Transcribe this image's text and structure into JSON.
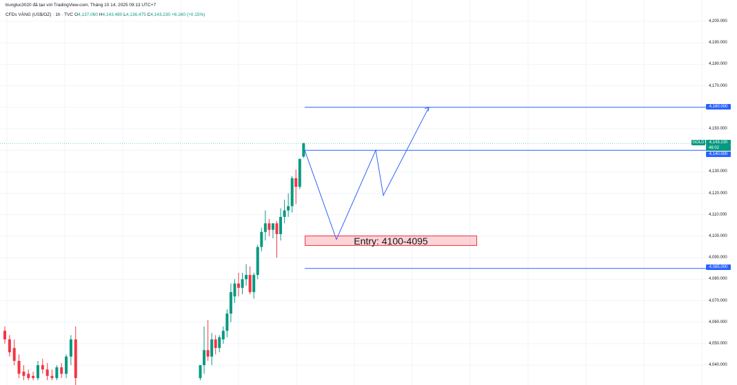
{
  "header": {
    "credit": "trungluc3020 đã tạo với TradingView.com, Tháng 10 14, 2025 09:13 UTC+7",
    "symbol_desc": "CFDs VÀNG (US$/OZ) · 1h · TVC",
    "ohlc": {
      "open_label": "O",
      "open": "4,137.060",
      "high_label": "H",
      "high": "4,143.480",
      "low_label": "L",
      "low": "4,136.475",
      "close_label": "C",
      "close": "4,143.230",
      "change": "+6.160 (+0.15%)"
    }
  },
  "price_axis": {
    "labels": [
      "4,200.000",
      "4,190.000",
      "4,180.000",
      "4,170.000",
      "4,150.000",
      "4,130.000",
      "4,120.000",
      "4,110.000",
      "4,100.000",
      "4,090.000",
      "4,080.000",
      "4,070.000",
      "4,060.000",
      "4,050.000",
      "4,040.000"
    ]
  },
  "tags": {
    "target": "4,160.000",
    "gold_label": "GOLD",
    "last_price": "4,143.230",
    "countdown": "46:02",
    "level": "4,140.000",
    "stop": "4,085.000"
  },
  "annotation": {
    "entry_text": "Entry: 4100-4095"
  },
  "colors": {
    "up": "#089981",
    "down": "#f23645",
    "drawing": "#2962ff"
  },
  "chart_data": {
    "type": "candlestick",
    "interval": "1h",
    "y_range": [
      4035,
      4205
    ],
    "horizontal_levels": [
      4160,
      4140,
      4085
    ],
    "entry_zone": [
      4095,
      4100
    ],
    "projected_path": [
      4140,
      4098.5,
      4140,
      4119,
      4160
    ],
    "candles_left": [
      {
        "o": 4056,
        "h": 4058,
        "l": 4050,
        "c": 4052
      },
      {
        "o": 4052,
        "h": 4054,
        "l": 4044,
        "c": 4046
      },
      {
        "o": 4048,
        "h": 4052,
        "l": 4040,
        "c": 4042
      },
      {
        "o": 4042,
        "h": 4045,
        "l": 4034,
        "c": 4036
      },
      {
        "o": 4037,
        "h": 4040,
        "l": 4033,
        "c": 4035
      },
      {
        "o": 4036,
        "h": 4038,
        "l": 4033,
        "c": 4034
      },
      {
        "o": 4035,
        "h": 4037,
        "l": 4033,
        "c": 4034
      },
      {
        "o": 4034,
        "h": 4042,
        "l": 4033,
        "c": 4040
      },
      {
        "o": 4040,
        "h": 4043,
        "l": 4036,
        "c": 4038
      },
      {
        "o": 4038,
        "h": 4041,
        "l": 4033,
        "c": 4035
      },
      {
        "o": 4035,
        "h": 4038,
        "l": 4033,
        "c": 4034
      },
      {
        "o": 4034,
        "h": 4040,
        "l": 4033,
        "c": 4039
      },
      {
        "o": 4039,
        "h": 4041,
        "l": 4034,
        "c": 4036
      },
      {
        "o": 4036,
        "h": 4045,
        "l": 4034,
        "c": 4044
      },
      {
        "o": 4044,
        "h": 4054,
        "l": 4040,
        "c": 4052
      },
      {
        "o": 4052,
        "h": 4058,
        "l": 4030,
        "c": 4034
      }
    ],
    "candles_right": [
      {
        "o": 4034,
        "h": 4040,
        "l": 4033,
        "c": 4040
      },
      {
        "o": 4040,
        "h": 4058,
        "l": 4036,
        "c": 4047
      },
      {
        "o": 4047,
        "h": 4061,
        "l": 4042,
        "c": 4044
      },
      {
        "o": 4044,
        "h": 4055,
        "l": 4040,
        "c": 4052
      },
      {
        "o": 4052,
        "h": 4054,
        "l": 4045,
        "c": 4048
      },
      {
        "o": 4048,
        "h": 4054,
        "l": 4046,
        "c": 4053
      },
      {
        "o": 4052,
        "h": 4058,
        "l": 4050,
        "c": 4056
      },
      {
        "o": 4056,
        "h": 4066,
        "l": 4053,
        "c": 4064
      },
      {
        "o": 4064,
        "h": 4078,
        "l": 4060,
        "c": 4074
      },
      {
        "o": 4072,
        "h": 4080,
        "l": 4069,
        "c": 4078
      },
      {
        "o": 4078,
        "h": 4083,
        "l": 4072,
        "c": 4076
      },
      {
        "o": 4076,
        "h": 4083,
        "l": 4073,
        "c": 4080
      },
      {
        "o": 4080,
        "h": 4087,
        "l": 4077,
        "c": 4082
      },
      {
        "o": 4082,
        "h": 4086,
        "l": 4073,
        "c": 4074
      },
      {
        "o": 4074,
        "h": 4083,
        "l": 4071,
        "c": 4082
      },
      {
        "o": 4082,
        "h": 4096,
        "l": 4080,
        "c": 4095
      },
      {
        "o": 4095,
        "h": 4104,
        "l": 4093,
        "c": 4102
      },
      {
        "o": 4102,
        "h": 4112,
        "l": 4098,
        "c": 4106
      },
      {
        "o": 4106,
        "h": 4108,
        "l": 4100,
        "c": 4103
      },
      {
        "o": 4103,
        "h": 4106,
        "l": 4099,
        "c": 4106
      },
      {
        "o": 4106,
        "h": 4107,
        "l": 4090,
        "c": 4101
      },
      {
        "o": 4101,
        "h": 4113,
        "l": 4098,
        "c": 4109
      },
      {
        "o": 4109,
        "h": 4117,
        "l": 4106,
        "c": 4112
      },
      {
        "o": 4112,
        "h": 4120,
        "l": 4109,
        "c": 4114
      },
      {
        "o": 4114,
        "h": 4128,
        "l": 4111,
        "c": 4127
      },
      {
        "o": 4127,
        "h": 4131,
        "l": 4115,
        "c": 4123
      },
      {
        "o": 4123,
        "h": 4136,
        "l": 4122,
        "c": 4136
      },
      {
        "o": 4137.06,
        "h": 4143.48,
        "l": 4136.475,
        "c": 4143.23
      }
    ]
  }
}
